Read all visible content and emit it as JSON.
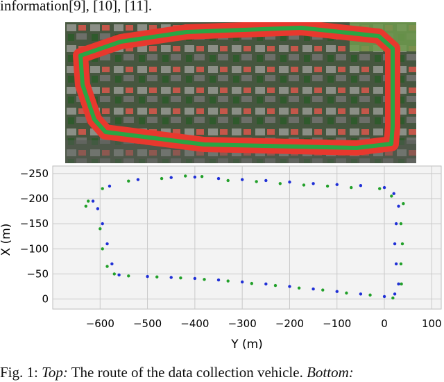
{
  "paper": {
    "top_text": "information[9], [10], [11].",
    "caption_prefix": "Fig. 1: ",
    "caption_top_label": "Top:",
    "caption_mid": " The route of the data collection vehicle. ",
    "caption_bottom_label": "Bottom:"
  },
  "colors": {
    "route_outer": "#e8382e",
    "route_inner": "#2aa544",
    "series_blue": "#1f2fd6",
    "series_green": "#22a02a",
    "plot_bg": "#f3f3f3",
    "grid": "#c9c9c9"
  },
  "chart_data": {
    "type": "scatter",
    "xlabel": "Y (m)",
    "ylabel": "X (m)",
    "xlim": [
      -700,
      120
    ],
    "ylim": [
      -265,
      20
    ],
    "y_inverted": true,
    "grid": true,
    "x_ticks": [
      -600,
      -500,
      -400,
      -300,
      -200,
      -100,
      0,
      100
    ],
    "x_tick_labels": [
      "−600",
      "−500",
      "−400",
      "−300",
      "−200",
      "−100",
      "0",
      "100"
    ],
    "y_ticks": [
      -250,
      -200,
      -150,
      -100,
      -50,
      0
    ],
    "y_tick_labels": [
      "−250",
      "−200",
      "−150",
      "−100",
      "−50",
      "0"
    ],
    "series": [
      {
        "color": "blue",
        "points": [
          [
            -615,
            -195
          ],
          [
            -580,
            -225
          ],
          [
            -520,
            -238
          ],
          [
            -450,
            -242
          ],
          [
            -400,
            -243
          ],
          [
            -350,
            -240
          ],
          [
            -300,
            -238
          ],
          [
            -250,
            -236
          ],
          [
            -200,
            -233
          ],
          [
            -150,
            -230
          ],
          [
            -100,
            -228
          ],
          [
            -50,
            -226
          ],
          [
            0,
            -222
          ],
          [
            20,
            -210
          ],
          [
            30,
            -185
          ],
          [
            25,
            -150
          ],
          [
            22,
            -110
          ],
          [
            25,
            -70
          ],
          [
            30,
            -30
          ],
          [
            22,
            -10
          ],
          [
            0,
            -5
          ],
          [
            -50,
            -10
          ],
          [
            -100,
            -15
          ],
          [
            -150,
            -20
          ],
          [
            -200,
            -25
          ],
          [
            -250,
            -30
          ],
          [
            -300,
            -34
          ],
          [
            -350,
            -38
          ],
          [
            -400,
            -41
          ],
          [
            -450,
            -43
          ],
          [
            -500,
            -45
          ],
          [
            -560,
            -48
          ],
          [
            -575,
            -70
          ],
          [
            -585,
            -110
          ],
          [
            -595,
            -150
          ],
          [
            -605,
            -180
          ]
        ]
      },
      {
        "color": "green",
        "points": [
          [
            -625,
            -195
          ],
          [
            -595,
            -220
          ],
          [
            -540,
            -235
          ],
          [
            -470,
            -240
          ],
          [
            -420,
            -245
          ],
          [
            -385,
            -244
          ],
          [
            -330,
            -236
          ],
          [
            -270,
            -234
          ],
          [
            -220,
            -230
          ],
          [
            -170,
            -227
          ],
          [
            -120,
            -225
          ],
          [
            -70,
            -222
          ],
          [
            -10,
            -220
          ],
          [
            15,
            -205
          ],
          [
            40,
            -190
          ],
          [
            35,
            -150
          ],
          [
            38,
            -110
          ],
          [
            35,
            -70
          ],
          [
            36,
            -30
          ],
          [
            18,
            -2
          ],
          [
            -30,
            -8
          ],
          [
            -80,
            -12
          ],
          [
            -130,
            -18
          ],
          [
            -180,
            -22
          ],
          [
            -230,
            -27
          ],
          [
            -280,
            -31
          ],
          [
            -330,
            -36
          ],
          [
            -380,
            -39
          ],
          [
            -430,
            -42
          ],
          [
            -480,
            -44
          ],
          [
            -540,
            -46
          ],
          [
            -570,
            -50
          ],
          [
            -585,
            -65
          ],
          [
            -595,
            -100
          ],
          [
            -600,
            -140
          ],
          [
            -630,
            -185
          ]
        ]
      }
    ]
  }
}
